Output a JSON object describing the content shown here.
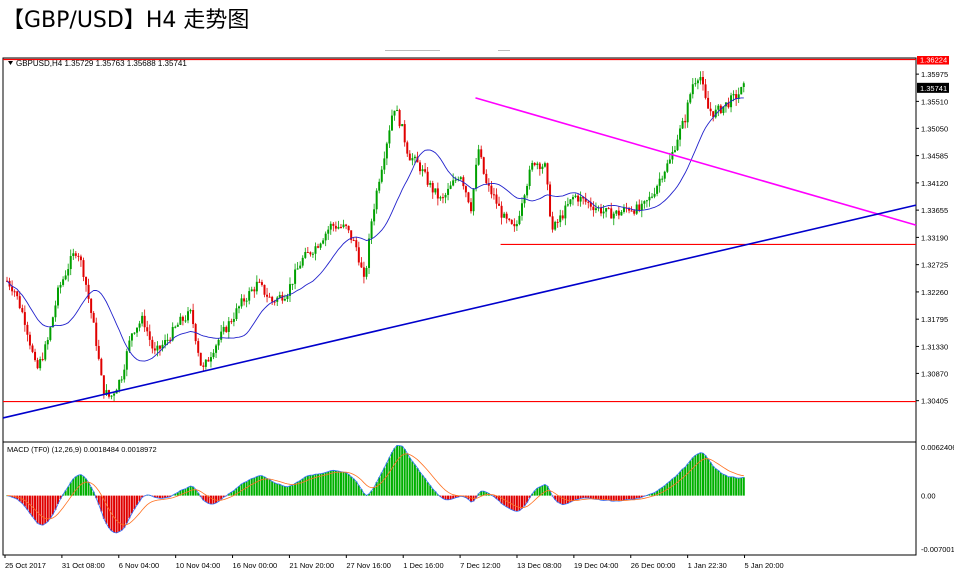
{
  "page": {
    "title": "【GBP/USD】H4 走势图"
  },
  "chart_data": {
    "type": "candlestick",
    "symbol_line": "GBPUSD,H4  1.35729 1.35763 1.35688 1.35741",
    "current_price_label": "1.35741",
    "resistance_label": "1.36224",
    "price_axis": {
      "range": [
        1.297,
        1.3625
      ],
      "ticks": [
        "1.35975",
        "1.35510",
        "1.35050",
        "1.34585",
        "1.34120",
        "1.33655",
        "1.33190",
        "1.32725",
        "1.32260",
        "1.31795",
        "1.31330",
        "1.30870",
        "1.30405"
      ]
    },
    "time_axis": {
      "ticks": [
        "25 Oct 2017",
        "31 Oct 08:00",
        "6 Nov 04:00",
        "10 Nov 04:00",
        "16 Nov 00:00",
        "21 Nov 20:00",
        "27 Nov 16:00",
        "1 Dec 16:00",
        "7 Dec 12:00",
        "13 Dec 08:00",
        "19 Dec 04:00",
        "26 Dec 00:00",
        "1 Jan 22:30",
        "5 Jan 20:00"
      ]
    },
    "horizontal_levels": [
      {
        "name": "resistance",
        "price": 1.36224,
        "color": "#ff0000"
      },
      {
        "name": "support",
        "price": 1.3307,
        "color": "#ff0000"
      },
      {
        "name": "bottom",
        "price": 1.3039,
        "color": "#ff0000"
      }
    ],
    "trendlines": [
      {
        "name": "descending",
        "color": "#ff00ff",
        "from": [
          0.5175,
          1.3557
        ],
        "to": [
          1.0,
          1.334
        ]
      },
      {
        "name": "ascending",
        "color": "#0000cc",
        "from": [
          0.0,
          1.3011
        ],
        "to": [
          1.0,
          1.3374
        ]
      }
    ],
    "price_path": [
      [
        0,
        1.3245
      ],
      [
        0.01,
        1.323
      ],
      [
        0.025,
        1.3175
      ],
      [
        0.04,
        1.309
      ],
      [
        0.055,
        1.314
      ],
      [
        0.07,
        1.323
      ],
      [
        0.085,
        1.3275
      ],
      [
        0.095,
        1.33
      ],
      [
        0.105,
        1.3255
      ],
      [
        0.12,
        1.315
      ],
      [
        0.13,
        1.306
      ],
      [
        0.14,
        1.3045
      ],
      [
        0.155,
        1.308
      ],
      [
        0.17,
        1.316
      ],
      [
        0.185,
        1.318
      ],
      [
        0.2,
        1.312
      ],
      [
        0.215,
        1.314
      ],
      [
        0.235,
        1.3175
      ],
      [
        0.25,
        1.319
      ],
      [
        0.265,
        1.309
      ],
      [
        0.28,
        1.313
      ],
      [
        0.3,
        1.317
      ],
      [
        0.32,
        1.321
      ],
      [
        0.34,
        1.324
      ],
      [
        0.36,
        1.321
      ],
      [
        0.38,
        1.3225
      ],
      [
        0.4,
        1.328
      ],
      [
        0.42,
        1.3305
      ],
      [
        0.44,
        1.334
      ],
      [
        0.46,
        1.3335
      ],
      [
        0.475,
        1.33
      ],
      [
        0.485,
        1.324
      ],
      [
        0.495,
        1.335
      ],
      [
        0.505,
        1.342
      ],
      [
        0.515,
        1.348
      ],
      [
        0.525,
        1.3545
      ],
      [
        0.535,
        1.351
      ],
      [
        0.545,
        1.346
      ],
      [
        0.56,
        1.344
      ],
      [
        0.575,
        1.3405
      ],
      [
        0.59,
        1.338
      ],
      [
        0.6,
        1.34
      ],
      [
        0.615,
        1.343
      ],
      [
        0.63,
        1.337
      ],
      [
        0.64,
        1.347
      ],
      [
        0.65,
        1.341
      ],
      [
        0.66,
        1.339
      ],
      [
        0.675,
        1.335
      ],
      [
        0.69,
        1.333
      ],
      [
        0.7,
        1.339
      ],
      [
        0.715,
        1.345
      ],
      [
        0.73,
        1.344
      ],
      [
        0.74,
        1.333
      ],
      [
        0.755,
        1.336
      ],
      [
        0.77,
        1.339
      ],
      [
        0.785,
        1.338
      ],
      [
        0.8,
        1.337
      ],
      [
        0.815,
        1.336
      ],
      [
        0.83,
        1.336
      ],
      [
        0.845,
        1.337
      ],
      [
        0.86,
        1.3365
      ],
      [
        0.875,
        1.339
      ],
      [
        0.89,
        1.343
      ],
      [
        0.9,
        1.345
      ],
      [
        0.91,
        1.349
      ],
      [
        0.92,
        1.352
      ],
      [
        0.93,
        1.358
      ],
      [
        0.94,
        1.36
      ],
      [
        0.95,
        1.354
      ],
      [
        0.96,
        1.353
      ],
      [
        0.975,
        1.3545
      ],
      [
        0.99,
        1.356
      ],
      [
        1.0,
        1.35741
      ]
    ],
    "macd": {
      "label": "MACD (TF0) (12,26,9) 0.0018484 0.0018972",
      "range": [
        -0.0072,
        0.0065
      ],
      "ticks": [
        "0.0062406",
        "0.00",
        "-0.007001"
      ]
    }
  }
}
